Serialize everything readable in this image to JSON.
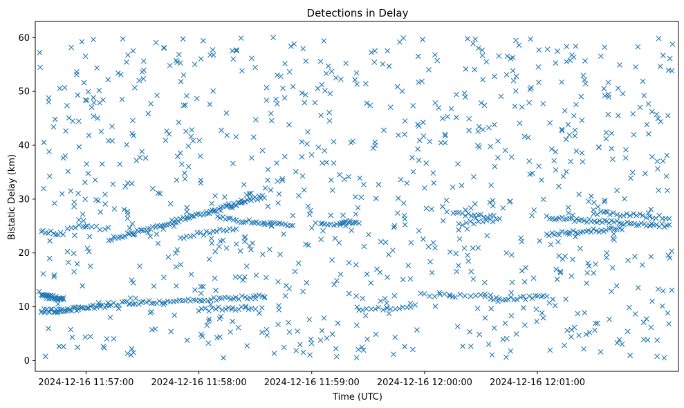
{
  "chart_data": {
    "type": "scatter",
    "title": "Detections in Delay",
    "xlabel": "Time (UTC)",
    "ylabel": "Bistatic Delay (km)",
    "marker": "x",
    "grid": false,
    "legend": "none",
    "colors": {
      "marker": "#1f77b4"
    },
    "x_axis": {
      "kind": "time",
      "min": "2024-12-16 11:56:33",
      "max": "2024-12-16 12:02:15",
      "ticks": [
        "2024-12-16 11:57:00",
        "2024-12-16 11:58:00",
        "2024-12-16 11:59:00",
        "2024-12-16 12:00:00",
        "2024-12-16 12:01:00"
      ]
    },
    "y_axis": {
      "min": -2,
      "max": 63,
      "ticks": [
        0,
        10,
        20,
        30,
        40,
        50,
        60
      ]
    },
    "tracks": [
      {
        "x_start": "2024-12-16 11:56:36",
        "x_end": "2024-12-16 11:56:48",
        "y_start": 12.0,
        "y_end": 11.5,
        "count": 30
      },
      {
        "x_start": "2024-12-16 11:56:36",
        "x_end": "2024-12-16 11:56:56",
        "y_start": 9.2,
        "y_end": 9.6,
        "count": 28
      },
      {
        "x_start": "2024-12-16 11:56:56",
        "x_end": "2024-12-16 11:57:12",
        "y_start": 9.8,
        "y_end": 10.2,
        "count": 16
      },
      {
        "x_start": "2024-12-16 11:57:12",
        "x_end": "2024-12-16 11:57:42",
        "y_start": 10.5,
        "y_end": 11.0,
        "count": 22
      },
      {
        "x_start": "2024-12-16 11:57:42",
        "x_end": "2024-12-16 11:58:35",
        "y_start": 11.0,
        "y_end": 12.0,
        "count": 36
      },
      {
        "x_start": "2024-12-16 11:58:00",
        "x_end": "2024-12-16 11:58:30",
        "y_start": 9.5,
        "y_end": 9.8,
        "count": 18
      },
      {
        "x_start": "2024-12-16 11:56:36",
        "x_end": "2024-12-16 11:56:48",
        "y_start": 24.0,
        "y_end": 23.6,
        "count": 10
      },
      {
        "x_start": "2024-12-16 11:56:52",
        "x_end": "2024-12-16 11:57:12",
        "y_start": 25.0,
        "y_end": 24.5,
        "count": 10
      },
      {
        "x_start": "2024-12-16 11:57:12",
        "x_end": "2024-12-16 11:57:48",
        "y_start": 22.5,
        "y_end": 26.0,
        "count": 30
      },
      {
        "x_start": "2024-12-16 11:57:48",
        "x_end": "2024-12-16 11:58:20",
        "y_start": 26.0,
        "y_end": 29.0,
        "count": 28
      },
      {
        "x_start": "2024-12-16 11:58:20",
        "x_end": "2024-12-16 11:58:35",
        "y_start": 29.0,
        "y_end": 30.5,
        "count": 16
      },
      {
        "x_start": "2024-12-16 11:57:50",
        "x_end": "2024-12-16 11:58:20",
        "y_start": 23.0,
        "y_end": 24.5,
        "count": 18
      },
      {
        "x_start": "2024-12-16 11:58:10",
        "x_end": "2024-12-16 11:58:50",
        "y_start": 26.5,
        "y_end": 25.0,
        "count": 30
      },
      {
        "x_start": "2024-12-16 11:59:05",
        "x_end": "2024-12-16 11:59:20",
        "y_start": 25.5,
        "y_end": 25.3,
        "count": 10
      },
      {
        "x_start": "2024-12-16 11:59:15",
        "x_end": "2024-12-16 11:59:25",
        "y_start": 25.5,
        "y_end": 25.8,
        "count": 10
      },
      {
        "x_start": "2024-12-16 12:00:15",
        "x_end": "2024-12-16 12:00:40",
        "y_start": 27.5,
        "y_end": 26.5,
        "count": 16
      },
      {
        "x_start": "2024-12-16 12:00:20",
        "x_end": "2024-12-16 12:00:35",
        "y_start": 25.5,
        "y_end": 26.0,
        "count": 8
      },
      {
        "x_start": "2024-12-16 12:00:00",
        "x_end": "2024-12-16 12:00:35",
        "y_start": 12.2,
        "y_end": 12.0,
        "count": 14
      },
      {
        "x_start": "2024-12-16 12:00:35",
        "x_end": "2024-12-16 12:01:05",
        "y_start": 11.5,
        "y_end": 11.8,
        "count": 20
      },
      {
        "x_start": "2024-12-16 12:01:05",
        "x_end": "2024-12-16 12:02:10",
        "y_start": 26.5,
        "y_end": 25.0,
        "count": 50
      },
      {
        "x_start": "2024-12-16 12:01:05",
        "x_end": "2024-12-16 12:01:45",
        "y_start": 23.5,
        "y_end": 24.5,
        "count": 30
      },
      {
        "x_start": "2024-12-16 12:01:30",
        "x_end": "2024-12-16 12:02:10",
        "y_start": 27.5,
        "y_end": 26.5,
        "count": 24
      },
      {
        "x_start": "2024-12-16 11:59:25",
        "x_end": "2024-12-16 11:59:40",
        "y_start": 9.5,
        "y_end": 9.8,
        "count": 8
      },
      {
        "x_start": "2024-12-16 11:59:40",
        "x_end": "2024-12-16 11:59:55",
        "y_start": 9.8,
        "y_end": 10.0,
        "count": 8
      }
    ],
    "clutter": {
      "x_start": "2024-12-16 11:56:35",
      "x_end": "2024-12-16 12:02:12",
      "y_min": 0.5,
      "y_max": 60,
      "count": 900
    }
  }
}
